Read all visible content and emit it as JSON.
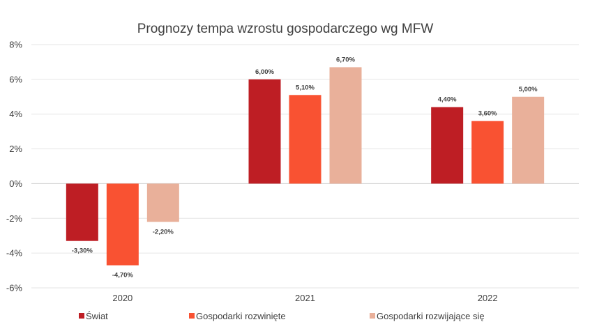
{
  "chart_data": {
    "type": "bar",
    "title": "Prognozy tempa wzrostu gospodarczego wg MFW",
    "xlabel": "",
    "ylabel": "",
    "categories": [
      "2020",
      "2021",
      "2022"
    ],
    "series": [
      {
        "name": "Świat",
        "values": [
          -3.3,
          6.0,
          4.4
        ],
        "labels": [
          "-3,30%",
          "6,00%",
          "4,40%"
        ],
        "color": "#be1e24"
      },
      {
        "name": "Gospodarki rozwinięte",
        "values": [
          -4.7,
          5.1,
          3.6
        ],
        "labels": [
          "-4,70%",
          "5,10%",
          "3,60%"
        ],
        "color": "#f95232"
      },
      {
        "name": "Gospodarki rozwijające się",
        "values": [
          -2.2,
          6.7,
          5.0
        ],
        "labels": [
          "-2,20%",
          "6,70%",
          "5,00%"
        ],
        "color": "#e9b09a"
      }
    ],
    "ylim": [
      -6,
      8
    ],
    "yticks": [
      8,
      6,
      4,
      2,
      0,
      -2,
      -4,
      -6
    ],
    "ytick_labels": [
      "8%",
      "6%",
      "4%",
      "2%",
      "0%",
      "-2%",
      "-4%",
      "-6%"
    ],
    "grid": true,
    "legend_position": "bottom-left"
  }
}
